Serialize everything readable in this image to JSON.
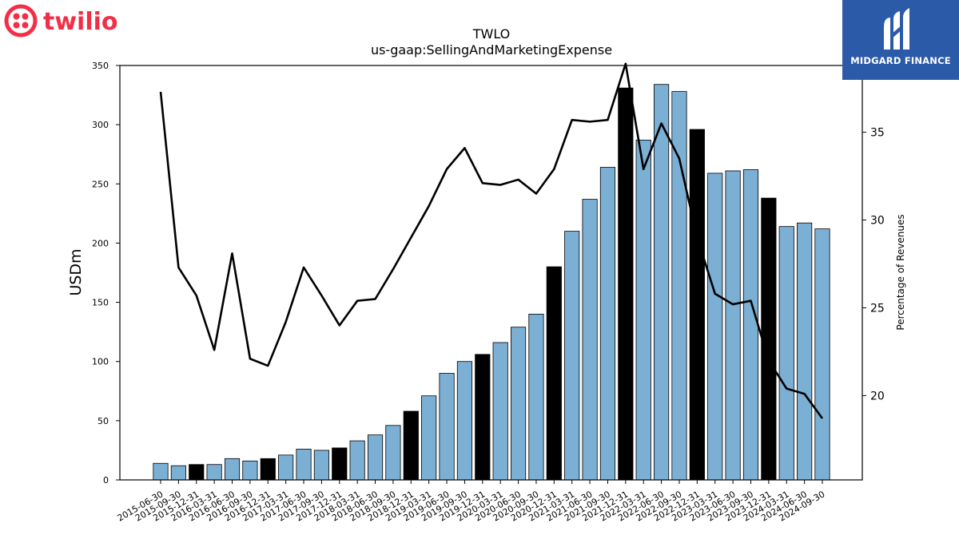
{
  "brand": {
    "left_logo": "twilio",
    "right_logo": "MIDGARD FINANCE",
    "colors": {
      "twilio_red": "#f22f46",
      "midgard_blue": "#2a5aa8"
    }
  },
  "chart_data": {
    "type": "bar",
    "title": "TWLO",
    "subtitle": "us-gaap:SellingAndMarketingExpense",
    "ylabel": "USDm",
    "y2label": "Percentage of Revenues",
    "ylim": [
      0,
      350
    ],
    "y2lim": [
      15.2,
      38.8
    ],
    "yticks": [
      0,
      50,
      100,
      150,
      200,
      250,
      300,
      350
    ],
    "y2ticks": [
      20,
      25,
      30,
      35
    ],
    "grid": false,
    "legend": "none",
    "colors": {
      "bar": "#7bafd4",
      "bar_q4": "#000000",
      "line": "#000000"
    },
    "categories": [
      "2015-06-30",
      "2015-09-30",
      "2015-12-31",
      "2016-03-31",
      "2016-06-30",
      "2016-09-30",
      "2016-12-31",
      "2017-03-31",
      "2017-06-30",
      "2017-09-30",
      "2017-12-31",
      "2018-03-31",
      "2018-06-30",
      "2018-09-30",
      "2018-12-31",
      "2019-03-31",
      "2019-06-30",
      "2019-09-30",
      "2019-12-31",
      "2020-03-31",
      "2020-06-30",
      "2020-09-30",
      "2020-12-31",
      "2021-03-31",
      "2021-06-30",
      "2021-09-30",
      "2021-12-31",
      "2022-03-31",
      "2022-06-30",
      "2022-09-30",
      "2022-12-31",
      "2023-03-31",
      "2023-06-30",
      "2023-09-30",
      "2023-12-31",
      "2024-03-31",
      "2024-06-30",
      "2024-09-30"
    ],
    "series": [
      {
        "kind": "bar",
        "values": [
          14,
          12,
          13,
          13,
          18,
          16,
          18,
          21,
          26,
          25,
          27,
          33,
          38,
          46,
          58,
          71,
          90,
          100,
          106,
          116,
          129,
          140,
          180,
          210,
          237,
          264,
          331,
          287,
          334,
          328,
          296,
          259,
          261,
          262,
          238,
          214,
          217,
          212
        ]
      },
      {
        "kind": "line",
        "axis": "right",
        "values": [
          37.3,
          27.3,
          25.7,
          22.6,
          28.1,
          22.1,
          21.7,
          24.2,
          27.3,
          25.7,
          24.0,
          25.4,
          25.5,
          27.2,
          29.0,
          30.8,
          32.9,
          34.1,
          32.1,
          32.0,
          32.3,
          31.5,
          32.9,
          35.7,
          35.6,
          35.7,
          38.9,
          32.9,
          35.5,
          33.5,
          29.0,
          25.8,
          25.2,
          25.4,
          22.0,
          20.4,
          20.1,
          18.7
        ]
      }
    ]
  }
}
